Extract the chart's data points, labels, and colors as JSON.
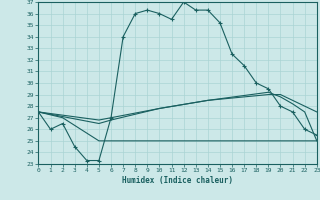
{
  "xlabel": "Humidex (Indice chaleur)",
  "xlim": [
    0,
    23
  ],
  "ylim": [
    23,
    37
  ],
  "xticks": [
    0,
    1,
    2,
    3,
    4,
    5,
    6,
    7,
    8,
    9,
    10,
    11,
    12,
    13,
    14,
    15,
    16,
    17,
    18,
    19,
    20,
    21,
    22,
    23
  ],
  "yticks": [
    23,
    24,
    25,
    26,
    27,
    28,
    29,
    30,
    31,
    32,
    33,
    34,
    35,
    36,
    37
  ],
  "bg_color": "#cce8e8",
  "line_color": "#1a6060",
  "grid_color": "#aad4d4",
  "line1_x": [
    0,
    1,
    2,
    3,
    4,
    5,
    6,
    7,
    8,
    9,
    10,
    11,
    12,
    13,
    14,
    15,
    16,
    17,
    18,
    19,
    20,
    21,
    22,
    23
  ],
  "line1_y": [
    27.5,
    26.0,
    26.5,
    24.5,
    23.3,
    23.3,
    27.0,
    34.0,
    36.0,
    36.3,
    36.0,
    35.5,
    37.0,
    36.3,
    36.3,
    35.2,
    32.5,
    31.5,
    30.0,
    29.5,
    28.0,
    27.5,
    26.0,
    25.5
  ],
  "line2_x": [
    0,
    2,
    5,
    23
  ],
  "line2_y": [
    27.5,
    27.0,
    25.0,
    25.0
  ],
  "line3_x": [
    0,
    5,
    6,
    10,
    14,
    19,
    20,
    21,
    22,
    23
  ],
  "line3_y": [
    27.5,
    26.8,
    27.0,
    27.8,
    28.5,
    29.0,
    29.0,
    28.5,
    28.0,
    27.5
  ],
  "line4_x": [
    0,
    5,
    6,
    10,
    14,
    19,
    20,
    21,
    22,
    23
  ],
  "line4_y": [
    27.5,
    26.5,
    26.8,
    27.8,
    28.5,
    29.2,
    28.8,
    28.2,
    27.5,
    25.0
  ]
}
